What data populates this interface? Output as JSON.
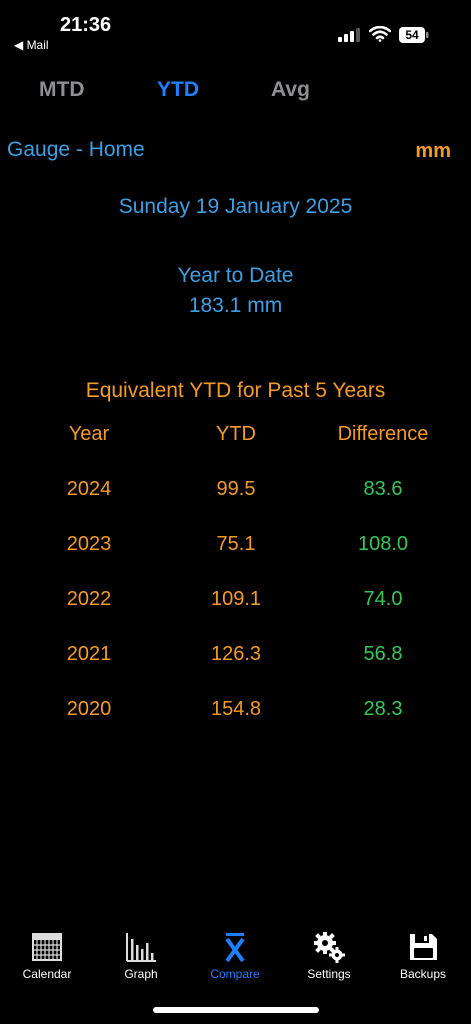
{
  "status": {
    "time": "21:36",
    "back_label": "◀ Mail",
    "battery": "54"
  },
  "tabs_top": {
    "mtd": "MTD",
    "ytd": "YTD",
    "avg": "Avg"
  },
  "gauge": {
    "name": "Gauge - Home",
    "units": "mm"
  },
  "date": "Sunday 19 January 2025",
  "ytd": {
    "label": "Year to Date",
    "value": "183.1 mm"
  },
  "comparison": {
    "title": "Equivalent YTD for Past 5 Years",
    "headers": {
      "year": "Year",
      "ytd": "YTD",
      "difference": "Difference"
    },
    "rows": [
      {
        "year": "2024",
        "ytd": "99.5",
        "difference": "83.6"
      },
      {
        "year": "2023",
        "ytd": "75.1",
        "difference": "108.0"
      },
      {
        "year": "2022",
        "ytd": "109.1",
        "difference": "74.0"
      },
      {
        "year": "2021",
        "ytd": "126.3",
        "difference": "56.8"
      },
      {
        "year": "2020",
        "ytd": "154.8",
        "difference": "28.3"
      }
    ]
  },
  "tabbar": [
    {
      "label": "Calendar",
      "icon": "calendar-icon"
    },
    {
      "label": "Graph",
      "icon": "bar-graph-icon"
    },
    {
      "label": "Compare",
      "icon": "x-bar-icon",
      "active": true
    },
    {
      "label": "Settings",
      "icon": "gears-icon"
    },
    {
      "label": "Backups",
      "icon": "floppy-disk-icon"
    }
  ],
  "colors": {
    "accent_blue": "#1e7fff",
    "text_blue": "#3aa0e6",
    "orange": "#f59a23",
    "green": "#34c759"
  }
}
